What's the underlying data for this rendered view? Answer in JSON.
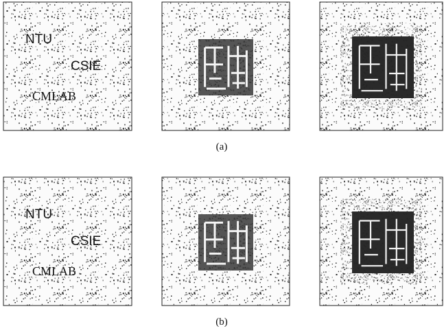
{
  "figure": {
    "rows": [
      {
        "caption": "(a)",
        "text_panel": [
          "NTU",
          "CSIE",
          "CMLAB"
        ]
      },
      {
        "caption": "(b)",
        "text_panel": [
          "NTU",
          "CSIE",
          "CMLAB"
        ]
      }
    ]
  }
}
